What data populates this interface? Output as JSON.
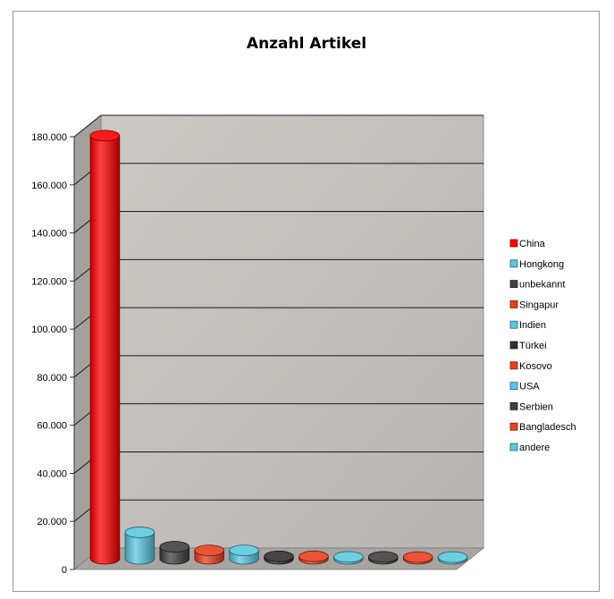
{
  "chart_data": {
    "type": "bar",
    "title": "Anzahl Artikel",
    "categories": [
      "China",
      "Hongkong",
      "unbekannt",
      "Singapur",
      "Indien",
      "Türkei",
      "Kosovo",
      "USA",
      "Serbien",
      "Bangladesch",
      "andere"
    ],
    "values": [
      176000,
      11000,
      5000,
      3500,
      3500,
      1000,
      1000,
      800,
      800,
      700,
      700
    ],
    "ylim": [
      0,
      180000
    ],
    "y_ticks": [
      0,
      20000,
      40000,
      60000,
      80000,
      100000,
      120000,
      140000,
      160000,
      180000
    ],
    "y_tick_labels": [
      "0",
      "20.000",
      "40.000",
      "60.000",
      "80.000",
      "100.000",
      "120.000",
      "140.000",
      "160.000",
      "180.000"
    ],
    "xlabel": "",
    "ylabel": "",
    "grid": true,
    "legend_position": "right",
    "bar_shape": "cylinder",
    "colors": [
      "#ff0000",
      "#5bc8e0",
      "#404040",
      "#e84020",
      "#5bc8e0",
      "#303030",
      "#e84020",
      "#5bc8e0",
      "#404040",
      "#e84020",
      "#5bc8e0"
    ],
    "wall_color": "#c8c4c0",
    "floor_color": "#a8a4a0"
  }
}
